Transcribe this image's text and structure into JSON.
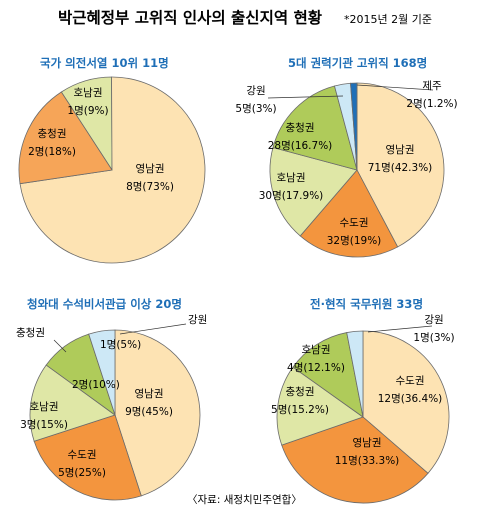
{
  "header": {
    "title": "박근혜정부 고위직 인사의 출신지역 현황",
    "note": "*2015년 2월 기준"
  },
  "source": "〈자료: 새정치민주연합〉",
  "colors": {
    "영남권": "#fde3b3",
    "충청권": "#f6a558",
    "호남권": "#dfe7a6",
    "수도권": "#f3953e",
    "강원": "#cde8f6",
    "제주": "#1f6fb7",
    "호남권_5대": "#afcb5a",
    "충청권_청와대": "#afcb5a",
    "호남권_국무위원": "#afcb5a",
    "충청권_국무위원": "#dfe7a6",
    "accent_title": "#1f6fb7",
    "stroke": "#6b6b6b"
  },
  "chart_data": [
    {
      "type": "pie",
      "title": "국가 의전서열 10위 11명",
      "slices": [
        {
          "name": "영남권",
          "count": 8,
          "percent": 73,
          "line1": "영남권",
          "line2": "8명(73%)"
        },
        {
          "name": "충청권",
          "count": 2,
          "percent": 18,
          "line1": "충청권",
          "line2": "2명(18%)"
        },
        {
          "name": "호남권",
          "count": 1,
          "percent": 9,
          "line1": "호남권",
          "line2": "1명(9%)"
        }
      ]
    },
    {
      "type": "pie",
      "title": "5대 권력기관 고위직 168명",
      "slices": [
        {
          "name": "영남권",
          "count": 71,
          "percent": 42.3,
          "line1": "영남권",
          "line2": "71명(42.3%)"
        },
        {
          "name": "수도권",
          "count": 32,
          "percent": 19,
          "line1": "수도권",
          "line2": "32명(19%)"
        },
        {
          "name": "호남권",
          "count": 30,
          "percent": 17.9,
          "line1": "호남권",
          "line2": "30명(17.9%)"
        },
        {
          "name": "충청권",
          "count": 28,
          "percent": 16.7,
          "line1": "충청권",
          "line2": "28명(16.7%)"
        },
        {
          "name": "강원",
          "count": 5,
          "percent": 3,
          "line1": "강원",
          "line2": "5명(3%)"
        },
        {
          "name": "제주",
          "count": 2,
          "percent": 1.2,
          "line1": "제주",
          "line2": "2명(1.2%)"
        }
      ]
    },
    {
      "type": "pie",
      "title": "청와대 수석비서관급 이상 20명",
      "slices": [
        {
          "name": "영남권",
          "count": 9,
          "percent": 45,
          "line1": "영남권",
          "line2": "9명(45%)"
        },
        {
          "name": "수도권",
          "count": 5,
          "percent": 25,
          "line1": "수도권",
          "line2": "5명(25%)"
        },
        {
          "name": "호남권",
          "count": 3,
          "percent": 15,
          "line1": "호남권",
          "line2": "3명(15%)"
        },
        {
          "name": "충청권",
          "count": 2,
          "percent": 10,
          "line1": "충청권",
          "line2": "2명(10%)"
        },
        {
          "name": "강원",
          "count": 1,
          "percent": 5,
          "line1": "강원",
          "line2": "1명(5%)"
        }
      ]
    },
    {
      "type": "pie",
      "title": "전·현직 국무위원 33명",
      "slices": [
        {
          "name": "수도권",
          "count": 12,
          "percent": 36.4,
          "line1": "수도권",
          "line2": "12명(36.4%)"
        },
        {
          "name": "영남권",
          "count": 11,
          "percent": 33.3,
          "line1": "영남권",
          "line2": "11명(33.3%)"
        },
        {
          "name": "충청권",
          "count": 5,
          "percent": 15.2,
          "line1": "충청권",
          "line2": "5명(15.2%)"
        },
        {
          "name": "호남권",
          "count": 4,
          "percent": 12.1,
          "line1": "호남권",
          "line2": "4명(12.1%)"
        },
        {
          "name": "강원",
          "count": 1,
          "percent": 3,
          "line1": "강원",
          "line2": "1명(3%)"
        }
      ]
    }
  ]
}
